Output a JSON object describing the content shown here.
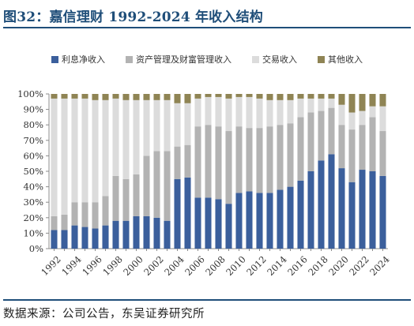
{
  "header": {
    "title": "图32：嘉信理财 1992-2024 年收入结构"
  },
  "footer": {
    "source": "数据来源：公司公告，东吴证券研究所"
  },
  "chart_data": {
    "type": "bar",
    "stacked": true,
    "normalized": true,
    "categories": [
      "1992",
      "1993",
      "1994",
      "1995",
      "1996",
      "1997",
      "1998",
      "1999",
      "2000",
      "2001",
      "2002",
      "2003",
      "2004",
      "2005",
      "2006",
      "2007",
      "2008",
      "2009",
      "2010",
      "2011",
      "2012",
      "2013",
      "2014",
      "2015",
      "2016",
      "2017",
      "2018",
      "2019",
      "2020",
      "2021",
      "2022",
      "2023",
      "2024"
    ],
    "x_tick_labels": [
      "1992",
      "1994",
      "1996",
      "1998",
      "2000",
      "2002",
      "2004",
      "2006",
      "2008",
      "2010",
      "2012",
      "2014",
      "2016",
      "2018",
      "2020",
      "2022",
      "2024"
    ],
    "series": [
      {
        "name": "利息净收入",
        "color": "#3b5f9c",
        "values": [
          12,
          12,
          15,
          14,
          13,
          15,
          18,
          18,
          21,
          21,
          20,
          18,
          45,
          46,
          33,
          33,
          32,
          29,
          36,
          37,
          36,
          36,
          38,
          40,
          44,
          50,
          57,
          61,
          52,
          43,
          51,
          50,
          47
        ]
      },
      {
        "name": "资产管理及财富管理收入",
        "color": "#b3b3b3",
        "values": [
          9,
          10,
          15,
          16,
          17,
          19,
          29,
          27,
          27,
          39,
          43,
          45,
          21,
          21,
          46,
          47,
          47,
          47,
          43,
          41,
          42,
          43,
          42,
          41,
          41,
          38,
          32,
          30,
          28,
          34,
          29,
          35,
          29
        ]
      },
      {
        "name": "交易收入",
        "color": "#dcdcdc",
        "values": [
          76,
          75,
          67,
          67,
          66,
          62,
          50,
          51,
          48,
          36,
          33,
          33,
          28,
          27,
          18,
          18,
          19,
          21,
          19,
          20,
          19,
          17,
          16,
          15,
          12,
          9,
          8,
          6,
          13,
          11,
          9,
          7,
          16
        ]
      },
      {
        "name": "其他收入",
        "color": "#8f8454",
        "values": [
          3,
          3,
          3,
          3,
          4,
          4,
          3,
          4,
          4,
          4,
          4,
          4,
          6,
          6,
          3,
          2,
          2,
          3,
          2,
          2,
          3,
          4,
          4,
          4,
          3,
          3,
          3,
          3,
          7,
          12,
          11,
          8,
          8
        ]
      }
    ],
    "ylim": [
      0,
      100
    ],
    "y_ticks": [
      "0%",
      "10%",
      "20%",
      "30%",
      "40%",
      "50%",
      "60%",
      "70%",
      "80%",
      "90%",
      "100%"
    ],
    "grid": false,
    "legend_position": "top"
  }
}
